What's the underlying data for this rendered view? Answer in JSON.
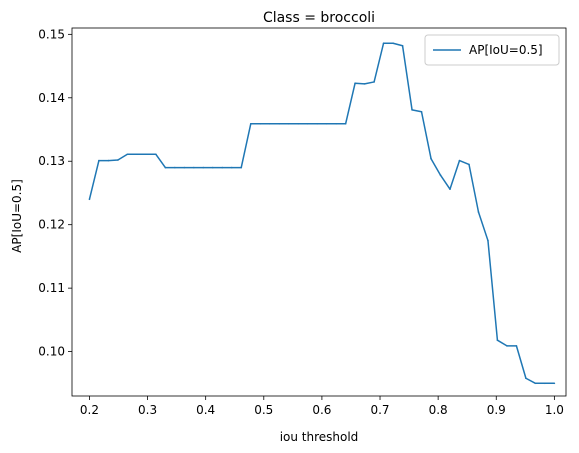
{
  "chart_data": {
    "type": "line",
    "title": "Class = broccoli",
    "xlabel": "iou threshold",
    "ylabel": "AP[IoU=0.5]",
    "xlim": [
      0.17,
      1.02
    ],
    "ylim": [
      0.093,
      0.151
    ],
    "xticks": [
      0.2,
      0.3,
      0.4,
      0.5,
      0.6,
      0.7,
      0.8,
      0.9,
      1.0
    ],
    "xtick_labels": [
      "0.2",
      "0.3",
      "0.4",
      "0.5",
      "0.6",
      "0.7",
      "0.8",
      "0.9",
      "1.0"
    ],
    "yticks": [
      0.1,
      0.11,
      0.12,
      0.13,
      0.14,
      0.15
    ],
    "ytick_labels": [
      "0.10",
      "0.11",
      "0.12",
      "0.13",
      "0.14",
      "0.15"
    ],
    "grid": false,
    "legend_position": "top-right",
    "series": [
      {
        "name": "AP[IoU=0.5]",
        "color": "#1f77b4",
        "x": [
          0.2,
          0.2163,
          0.2327,
          0.249,
          0.2653,
          0.2816,
          0.298,
          0.3143,
          0.3306,
          0.3469,
          0.3633,
          0.3796,
          0.3959,
          0.4122,
          0.4286,
          0.4449,
          0.4612,
          0.4776,
          0.4939,
          0.5102,
          0.5265,
          0.5429,
          0.5592,
          0.5755,
          0.5918,
          0.6082,
          0.6245,
          0.6408,
          0.6571,
          0.6735,
          0.6898,
          0.7061,
          0.7224,
          0.7388,
          0.7551,
          0.7714,
          0.7878,
          0.8041,
          0.8204,
          0.8367,
          0.8531,
          0.8694,
          0.8857,
          0.902,
          0.9184,
          0.9347,
          0.951,
          0.9673,
          0.9837,
          1.0
        ],
        "y": [
          0.124,
          0.1301,
          0.1301,
          0.1302,
          0.1311,
          0.1311,
          0.1311,
          0.1311,
          0.129,
          0.129,
          0.129,
          0.129,
          0.129,
          0.129,
          0.129,
          0.129,
          0.129,
          0.1359,
          0.1359,
          0.1359,
          0.1359,
          0.1359,
          0.1359,
          0.1359,
          0.1359,
          0.1359,
          0.1359,
          0.1359,
          0.1423,
          0.1422,
          0.1425,
          0.1486,
          0.1486,
          0.1482,
          0.1381,
          0.1378,
          0.1304,
          0.1278,
          0.1256,
          0.1301,
          0.1295,
          0.122,
          0.1175,
          0.1018,
          0.1009,
          0.1009,
          0.0958,
          0.095,
          0.095,
          0.095
        ]
      }
    ]
  }
}
